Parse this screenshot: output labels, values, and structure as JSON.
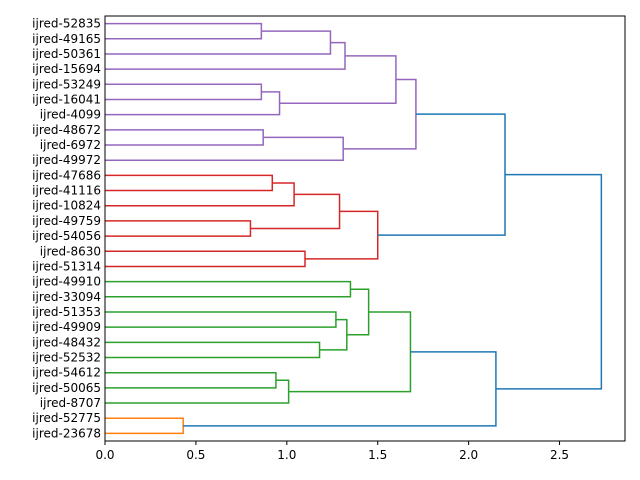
{
  "chart_data": {
    "type": "dendrogram",
    "orientation": "horizontal",
    "title": "",
    "xlabel": "",
    "ylabel": "",
    "xlim": [
      0,
      2.86
    ],
    "xticks": [
      "0.0",
      "0.5",
      "1.0",
      "1.5",
      "2.0",
      "2.5"
    ],
    "xtick_values": [
      0,
      0.5,
      1.0,
      1.5,
      2.0,
      2.5
    ],
    "leaves": [
      "ijred-52835",
      "ijred-49165",
      "ijred-50361",
      "ijred-15694",
      "ijred-53249",
      "ijred-16041",
      "ijred-4099",
      "ijred-48672",
      "ijred-6972",
      "ijred-49972",
      "ijred-47686",
      "ijred-41116",
      "ijred-10824",
      "ijred-49759",
      "ijred-54056",
      "ijred-8630",
      "ijred-51314",
      "ijred-49910",
      "ijred-33094",
      "ijred-51353",
      "ijred-49909",
      "ijred-48432",
      "ijred-52532",
      "ijred-54612",
      "ijred-50065",
      "ijred-8707",
      "ijred-52775",
      "ijred-23678"
    ],
    "cluster_colors": {
      "purple": "#9467bd",
      "red": "#d62728",
      "green": "#2ca02c",
      "orange": "#ff7f0e",
      "blue": "#1f77b4"
    },
    "merges": [
      {
        "id": "P1",
        "children": [
          "ijred-52835",
          "ijred-49165"
        ],
        "height": 0.86,
        "color": "purple"
      },
      {
        "id": "P2",
        "children": [
          "P1",
          "ijred-50361"
        ],
        "height": 1.24,
        "color": "purple"
      },
      {
        "id": "P3",
        "children": [
          "P2",
          "ijred-15694"
        ],
        "height": 1.32,
        "color": "purple"
      },
      {
        "id": "P4",
        "children": [
          "ijred-53249",
          "ijred-16041"
        ],
        "height": 0.86,
        "color": "purple"
      },
      {
        "id": "P5",
        "children": [
          "P4",
          "ijred-4099"
        ],
        "height": 0.96,
        "color": "purple"
      },
      {
        "id": "P6",
        "children": [
          "P3",
          "P5"
        ],
        "height": 1.6,
        "color": "purple"
      },
      {
        "id": "P7",
        "children": [
          "ijred-48672",
          "ijred-6972"
        ],
        "height": 0.87,
        "color": "purple"
      },
      {
        "id": "P8",
        "children": [
          "P7",
          "ijred-49972"
        ],
        "height": 1.31,
        "color": "purple"
      },
      {
        "id": "P9",
        "children": [
          "P6",
          "P8"
        ],
        "height": 1.71,
        "color": "purple"
      },
      {
        "id": "R1",
        "children": [
          "ijred-47686",
          "ijred-41116"
        ],
        "height": 0.92,
        "color": "red"
      },
      {
        "id": "R2",
        "children": [
          "R1",
          "ijred-10824"
        ],
        "height": 1.04,
        "color": "red"
      },
      {
        "id": "R3",
        "children": [
          "ijred-49759",
          "ijred-54056"
        ],
        "height": 0.8,
        "color": "red"
      },
      {
        "id": "R4",
        "children": [
          "R2",
          "R3"
        ],
        "height": 1.29,
        "color": "red"
      },
      {
        "id": "R5",
        "children": [
          "ijred-8630",
          "ijred-51314"
        ],
        "height": 1.1,
        "color": "red"
      },
      {
        "id": "R6",
        "children": [
          "R4",
          "R5"
        ],
        "height": 1.5,
        "color": "red"
      },
      {
        "id": "B1",
        "children": [
          "P9",
          "R6"
        ],
        "height": 2.2,
        "color": "blue"
      },
      {
        "id": "G1",
        "children": [
          "ijred-49910",
          "ijred-33094"
        ],
        "height": 1.35,
        "color": "green"
      },
      {
        "id": "G2",
        "children": [
          "ijred-51353",
          "ijred-49909"
        ],
        "height": 1.27,
        "color": "green"
      },
      {
        "id": "G3",
        "children": [
          "ijred-48432",
          "ijred-52532"
        ],
        "height": 1.18,
        "color": "green"
      },
      {
        "id": "G4",
        "children": [
          "G2",
          "G3"
        ],
        "height": 1.33,
        "color": "green"
      },
      {
        "id": "G5",
        "children": [
          "G1",
          "G4"
        ],
        "height": 1.45,
        "color": "green"
      },
      {
        "id": "G6",
        "children": [
          "ijred-54612",
          "ijred-50065"
        ],
        "height": 0.94,
        "color": "green"
      },
      {
        "id": "G7",
        "children": [
          "G6",
          "ijred-8707"
        ],
        "height": 1.01,
        "color": "green"
      },
      {
        "id": "G8",
        "children": [
          "G5",
          "G7"
        ],
        "height": 1.68,
        "color": "green"
      },
      {
        "id": "O1",
        "children": [
          "ijred-52775",
          "ijred-23678"
        ],
        "height": 0.43,
        "color": "orange"
      },
      {
        "id": "B2",
        "children": [
          "G8",
          "O1"
        ],
        "height": 2.15,
        "color": "blue"
      },
      {
        "id": "B3",
        "children": [
          "B1",
          "B2"
        ],
        "height": 2.73,
        "color": "blue"
      }
    ]
  }
}
